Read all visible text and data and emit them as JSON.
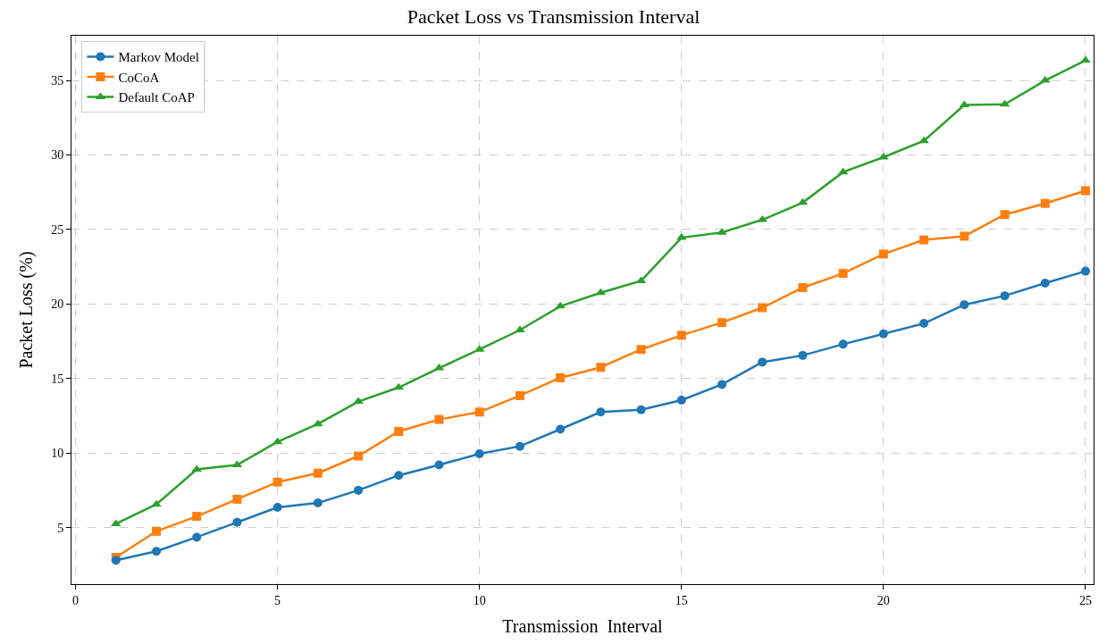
{
  "chart_data": {
    "type": "line",
    "title": "Packet Loss vs Transmission Interval",
    "xlabel": "Transmission  Interval",
    "ylabel": "Packet Loss (%)",
    "x": [
      1,
      2,
      3,
      4,
      5,
      6,
      7,
      8,
      9,
      10,
      11,
      12,
      13,
      14,
      15,
      16,
      17,
      18,
      19,
      20,
      21,
      22,
      23,
      24,
      25
    ],
    "series": [
      {
        "name": "Markov Model",
        "color": "#1f77b4",
        "marker": "circle",
        "values": [
          2.8,
          3.4,
          4.35,
          5.35,
          6.35,
          6.65,
          7.5,
          8.5,
          9.2,
          9.95,
          10.45,
          11.6,
          12.75,
          12.9,
          13.55,
          14.6,
          16.1,
          16.55,
          17.3,
          18.0,
          18.7,
          19.95,
          20.55,
          21.4,
          22.2
        ]
      },
      {
        "name": "CoCoA",
        "color": "#ff7f0e",
        "marker": "square",
        "values": [
          3.0,
          4.75,
          5.75,
          6.9,
          8.05,
          8.65,
          9.8,
          11.45,
          12.25,
          12.75,
          13.85,
          15.05,
          15.75,
          16.95,
          17.9,
          18.75,
          19.75,
          21.1,
          22.05,
          23.35,
          24.3,
          24.55,
          26.0,
          26.75,
          27.6
        ]
      },
      {
        "name": "Default CoAP",
        "color": "#2ca02c",
        "marker": "triangle",
        "values": [
          5.25,
          6.55,
          8.9,
          9.2,
          10.75,
          11.95,
          13.45,
          14.4,
          15.7,
          16.95,
          18.25,
          19.85,
          20.75,
          21.55,
          24.45,
          24.8,
          25.65,
          26.8,
          28.85,
          29.85,
          30.95,
          33.35,
          33.4,
          35.0,
          36.35
        ]
      }
    ],
    "xlim": [
      -0.1,
      25.2
    ],
    "xticks": [
      0,
      5,
      10,
      15,
      20,
      25
    ],
    "ylim": [
      1.2,
      38.0
    ],
    "yticks": [
      5,
      10,
      15,
      20,
      25,
      30,
      35
    ],
    "grid": true,
    "legend": "top left",
    "line_style": "solid"
  }
}
